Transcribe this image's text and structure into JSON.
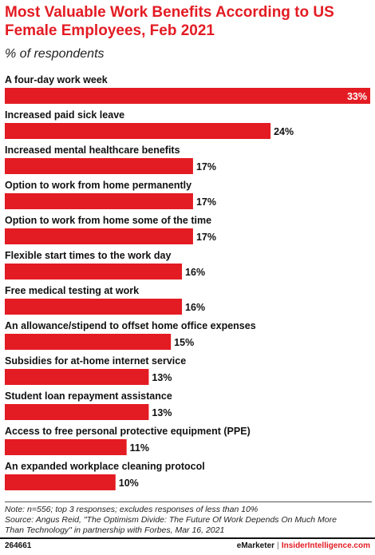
{
  "header": {
    "title": "Most Valuable Work Benefits According to US Female Employees, Feb 2021",
    "subtitle": "% of respondents"
  },
  "colors": {
    "bar": "#e31b23",
    "title": "#e31b23"
  },
  "chart_data": {
    "type": "bar",
    "orientation": "horizontal",
    "title": "Most Valuable Work Benefits According to US Female Employees, Feb 2021",
    "subtitle": "% of respondents",
    "xlabel": "",
    "ylabel": "",
    "xlim": [
      0,
      33
    ],
    "grid": false,
    "legend": "none",
    "categories": [
      "A four-day work week",
      "Increased paid sick leave",
      "Increased mental healthcare benefits",
      "Option to work from home permanently",
      "Option to work from home some of the time",
      "Flexible start times to the work day",
      "Free medical testing at work",
      "An allowance/stipend to offset home office expenses",
      "Subsidies for at-home internet service",
      "Student loan repayment assistance",
      "Access to free personal protective equipment (PPE)",
      "An expanded workplace cleaning protocol"
    ],
    "values": [
      33,
      24,
      17,
      17,
      17,
      16,
      16,
      15,
      13,
      13,
      11,
      10
    ],
    "value_labels": [
      "33%",
      "24%",
      "17%",
      "17%",
      "17%",
      "16%",
      "16%",
      "15%",
      "13%",
      "13%",
      "11%",
      "10%"
    ]
  },
  "footer": {
    "note": "Note: n=556; top 3 responses; excludes responses of less than 10%",
    "source": "Source: Angus Reid, \"The Optimism Divide: The Future Of Work Depends On Much More Than Technology\" in partnership with Forbes, Mar 16, 2021",
    "chart_id": "264661",
    "brand": "eMarketer",
    "separator": "|",
    "site": "InsiderIntelligence.com"
  }
}
